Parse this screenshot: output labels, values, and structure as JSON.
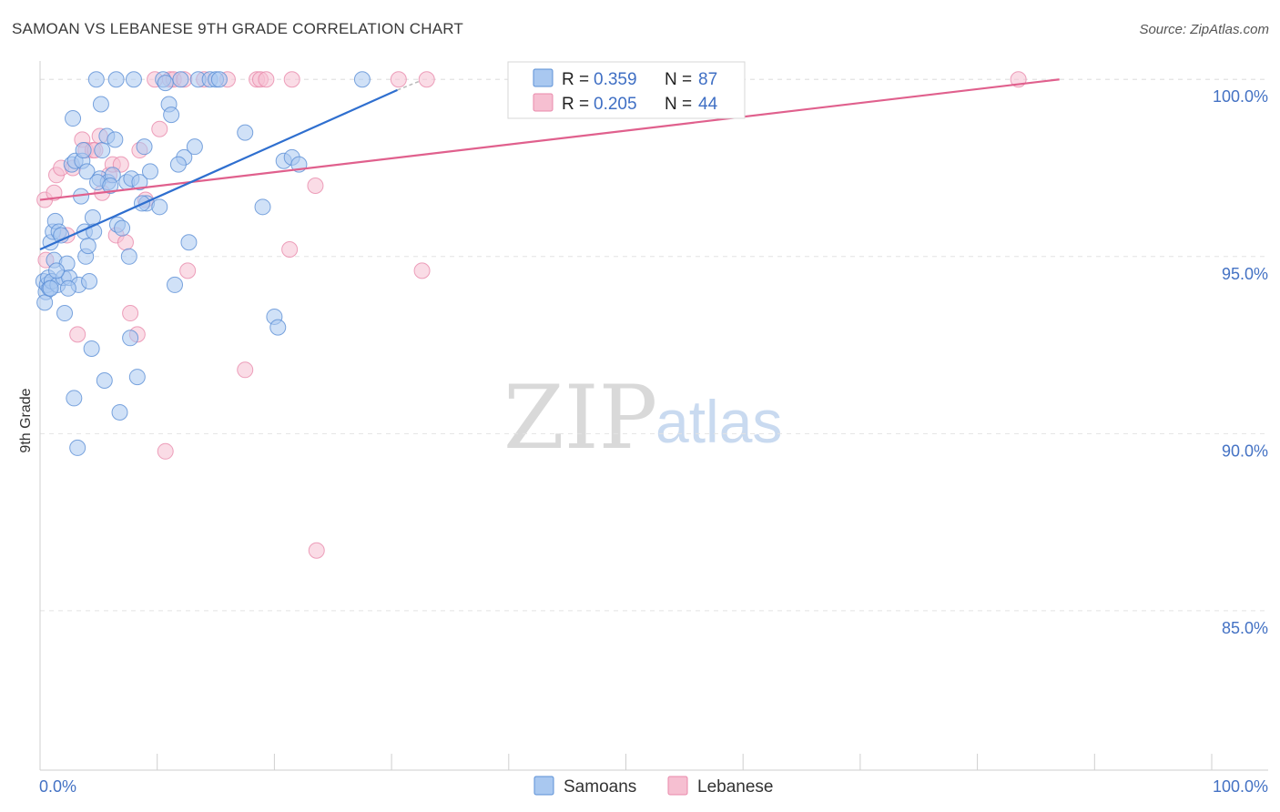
{
  "header": {
    "title": "SAMOAN VS LEBANESE 9TH GRADE CORRELATION CHART",
    "source": "Source: ZipAtlas.com"
  },
  "watermark": {
    "zip": "ZIP",
    "atlas": "atlas"
  },
  "colors": {
    "samoans_fill": "#a9c8f0",
    "samoans_stroke": "#5b8fd6",
    "samoans_line": "#2f6fcf",
    "lebanese_fill": "#f6bfd1",
    "lebanese_stroke": "#e98aab",
    "lebanese_line": "#e0608d",
    "axis_label": "#4472c4",
    "grid": "#e3e3e3"
  },
  "legend": {
    "rows": [
      {
        "r_label": "R =",
        "r_value": "0.359",
        "n_label": "N =",
        "n_value": "87"
      },
      {
        "r_label": "R =",
        "r_value": "0.205",
        "n_label": "N =",
        "n_value": "44"
      }
    ]
  },
  "bottom_legend": {
    "samoans": "Samoans",
    "lebanese": "Lebanese"
  },
  "chart_data": {
    "type": "scatter",
    "title": "SAMOAN VS LEBANESE 9TH GRADE CORRELATION CHART",
    "xlabel": "",
    "ylabel": "9th Grade",
    "xlim": [
      0,
      100
    ],
    "ylim": [
      80.5,
      100.7
    ],
    "x_tick_labels": [
      "0.0%",
      "100.0%"
    ],
    "y_ticks": [
      85,
      90,
      95,
      100
    ],
    "y_tick_labels": [
      "85.0%",
      "90.0%",
      "95.0%",
      "100.0%"
    ],
    "grid": true,
    "series": [
      {
        "name": "Samoans",
        "r": 0.359,
        "n": 87,
        "trend": {
          "x": [
            0,
            30.5
          ],
          "y": [
            95.2,
            99.7
          ]
        },
        "points": [
          [
            0.3,
            94.3
          ],
          [
            0.5,
            94.0
          ],
          [
            0.4,
            93.7
          ],
          [
            0.6,
            94.2
          ],
          [
            0.7,
            94.4
          ],
          [
            0.8,
            94.1
          ],
          [
            0.9,
            95.4
          ],
          [
            1.0,
            94.3
          ],
          [
            1.1,
            95.7
          ],
          [
            1.2,
            94.9
          ],
          [
            1.3,
            96.0
          ],
          [
            1.5,
            94.2
          ],
          [
            1.6,
            95.7
          ],
          [
            1.8,
            95.6
          ],
          [
            2.0,
            94.4
          ],
          [
            2.1,
            93.4
          ],
          [
            2.3,
            94.8
          ],
          [
            2.5,
            94.4
          ],
          [
            2.7,
            97.6
          ],
          [
            2.8,
            98.9
          ],
          [
            2.9,
            91.0
          ],
          [
            3.0,
            97.7
          ],
          [
            3.2,
            89.6
          ],
          [
            3.3,
            94.2
          ],
          [
            3.5,
            96.7
          ],
          [
            3.6,
            97.7
          ],
          [
            3.7,
            98.0
          ],
          [
            3.8,
            95.7
          ],
          [
            3.9,
            95.0
          ],
          [
            4.0,
            97.4
          ],
          [
            4.1,
            95.3
          ],
          [
            4.2,
            94.3
          ],
          [
            4.4,
            92.4
          ],
          [
            4.5,
            96.1
          ],
          [
            4.6,
            95.7
          ],
          [
            4.8,
            100.0
          ],
          [
            5.1,
            97.2
          ],
          [
            5.2,
            99.3
          ],
          [
            5.3,
            98.0
          ],
          [
            5.5,
            91.5
          ],
          [
            5.7,
            98.4
          ],
          [
            5.8,
            97.1
          ],
          [
            6.2,
            97.3
          ],
          [
            6.4,
            98.3
          ],
          [
            6.5,
            100.0
          ],
          [
            6.6,
            95.9
          ],
          [
            6.8,
            90.6
          ],
          [
            7.0,
            95.8
          ],
          [
            7.4,
            97.1
          ],
          [
            7.6,
            95.0
          ],
          [
            7.7,
            92.7
          ],
          [
            7.8,
            97.2
          ],
          [
            8.0,
            100.0
          ],
          [
            8.3,
            91.6
          ],
          [
            8.5,
            97.1
          ],
          [
            8.9,
            98.1
          ],
          [
            9.1,
            96.5
          ],
          [
            9.4,
            97.4
          ],
          [
            10.2,
            96.4
          ],
          [
            10.5,
            100.0
          ],
          [
            10.7,
            99.9
          ],
          [
            11.0,
            99.3
          ],
          [
            11.2,
            99.0
          ],
          [
            11.5,
            94.2
          ],
          [
            12.0,
            100.0
          ],
          [
            12.3,
            97.8
          ],
          [
            12.7,
            95.4
          ],
          [
            13.2,
            98.1
          ],
          [
            13.5,
            100.0
          ],
          [
            14.5,
            100.0
          ],
          [
            15.0,
            100.0
          ],
          [
            15.3,
            100.0
          ],
          [
            17.5,
            98.5
          ],
          [
            19.0,
            96.4
          ],
          [
            20.0,
            93.3
          ],
          [
            20.3,
            93.0
          ],
          [
            20.8,
            97.7
          ],
          [
            21.5,
            97.8
          ],
          [
            22.1,
            97.6
          ],
          [
            27.5,
            100.0
          ],
          [
            1.4,
            94.6
          ],
          [
            2.4,
            94.1
          ],
          [
            4.9,
            97.1
          ],
          [
            6.0,
            97.0
          ],
          [
            8.7,
            96.5
          ],
          [
            11.8,
            97.6
          ],
          [
            0.9,
            94.1
          ]
        ]
      },
      {
        "name": "Lebanese",
        "r": 0.205,
        "n": 44,
        "trend": {
          "x": [
            0,
            87
          ],
          "y": [
            96.6,
            100.0
          ]
        },
        "points": [
          [
            0.4,
            96.6
          ],
          [
            0.5,
            94.9
          ],
          [
            1.2,
            96.8
          ],
          [
            1.4,
            97.3
          ],
          [
            1.8,
            97.5
          ],
          [
            2.3,
            95.6
          ],
          [
            2.8,
            97.5
          ],
          [
            3.2,
            92.8
          ],
          [
            3.6,
            98.3
          ],
          [
            3.9,
            98.0
          ],
          [
            4.5,
            98.0
          ],
          [
            4.7,
            98.0
          ],
          [
            5.1,
            98.4
          ],
          [
            5.3,
            96.8
          ],
          [
            5.9,
            97.3
          ],
          [
            6.2,
            97.6
          ],
          [
            6.5,
            95.6
          ],
          [
            6.9,
            97.6
          ],
          [
            7.3,
            95.4
          ],
          [
            7.7,
            93.4
          ],
          [
            8.3,
            92.8
          ],
          [
            8.5,
            98.0
          ],
          [
            9.0,
            96.6
          ],
          [
            9.8,
            100.0
          ],
          [
            10.2,
            98.6
          ],
          [
            10.7,
            89.5
          ],
          [
            11.1,
            100.0
          ],
          [
            11.4,
            100.0
          ],
          [
            12.3,
            100.0
          ],
          [
            12.6,
            94.6
          ],
          [
            14.0,
            100.0
          ],
          [
            16.0,
            100.0
          ],
          [
            17.5,
            91.8
          ],
          [
            18.5,
            100.0
          ],
          [
            18.8,
            100.0
          ],
          [
            19.3,
            100.0
          ],
          [
            21.3,
            95.2
          ],
          [
            21.5,
            100.0
          ],
          [
            23.5,
            97.0
          ],
          [
            23.6,
            86.7
          ],
          [
            30.6,
            100.0
          ],
          [
            32.6,
            94.6
          ],
          [
            33.0,
            100.0
          ],
          [
            83.5,
            100.0
          ]
        ]
      }
    ]
  }
}
